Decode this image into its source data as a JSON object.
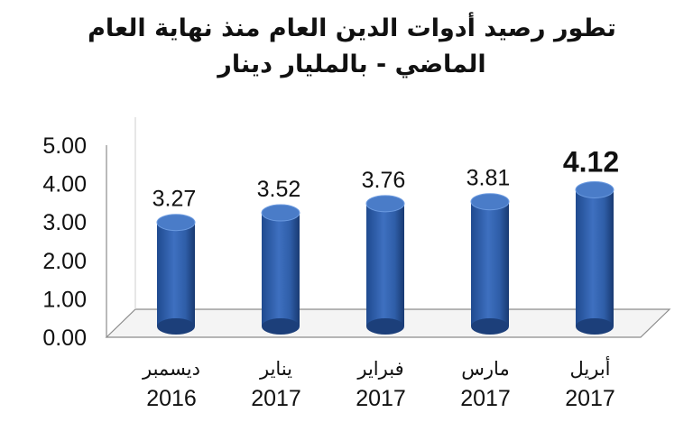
{
  "chart_data": {
    "type": "bar",
    "title": "تطور رصيد أدوات الدين العام منذ نهاية العام الماضي - بالمليار دينار",
    "categories": [
      {
        "month": "ديسمبر",
        "year": "2016"
      },
      {
        "month": "يناير",
        "year": "2017"
      },
      {
        "month": "فبراير",
        "year": "2017"
      },
      {
        "month": "مارس",
        "year": "2017"
      },
      {
        "month": "أبريل",
        "year": "2017"
      }
    ],
    "values": [
      3.27,
      3.52,
      3.76,
      3.81,
      4.12
    ],
    "value_labels": [
      "3.27",
      "3.52",
      "3.76",
      "3.81",
      "4.12"
    ],
    "highlight_index": 4,
    "y_ticks": [
      "0.00",
      "1.00",
      "2.00",
      "3.00",
      "4.00",
      "5.00"
    ],
    "ylim": [
      0,
      5
    ],
    "bar_style": "3d-cylinder",
    "grid": false,
    "colors": {
      "bar": "#2f5ea8",
      "bar_dark": "#1c3f7a",
      "bar_light": "#6b9ae0",
      "top": "#4a7cc8",
      "floor": "#f2f2f2",
      "axis": "#7f7f7f"
    }
  }
}
